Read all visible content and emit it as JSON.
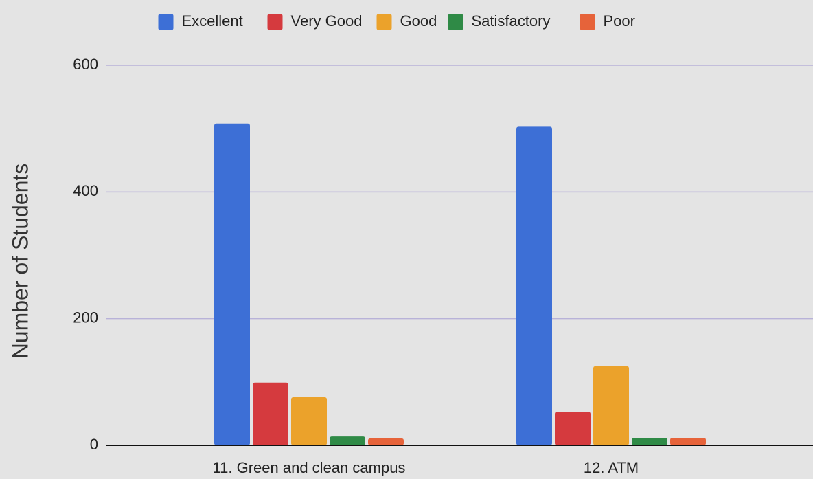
{
  "chart_data": {
    "type": "bar",
    "y_label": "Number of Students",
    "categories": [
      "11. Green and clean campus",
      "12. ATM"
    ],
    "series": [
      {
        "name": "Excellent",
        "color": "#3d6fd6",
        "values": [
          508,
          503
        ]
      },
      {
        "name": "Very Good",
        "color": "#d53a3e",
        "values": [
          99,
          53
        ]
      },
      {
        "name": "Good",
        "color": "#eba22b",
        "values": [
          76,
          125
        ]
      },
      {
        "name": "Satisfactory",
        "color": "#2f8a46",
        "values": [
          14,
          12
        ]
      },
      {
        "name": "Poor",
        "color": "#e6633a",
        "values": [
          11,
          12
        ]
      }
    ],
    "ylim": [
      0,
      600
    ],
    "yticks": [
      0,
      200,
      400,
      600
    ],
    "grid": true,
    "legend": "top"
  }
}
